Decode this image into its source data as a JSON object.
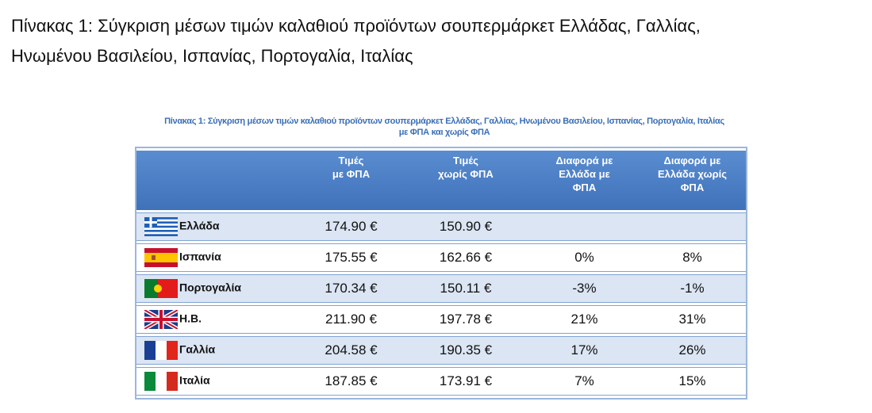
{
  "header": {
    "title_lines": [
      "Πίνακας 1: Σύγκριση μέσων τιμών καλαθιού προϊόντων σουπερμάρκετ Ελλάδας, Γαλλίας,",
      "Ηνωμένου Βασιλείου, Ισπανίας, Πορτογαλία, Ιταλίας"
    ]
  },
  "table": {
    "caption_lines": [
      "Πίνακας 1: Σύγκριση μέσων τιμών καλαθιού προϊόντων σουπερμάρκετ Ελλάδας, Γαλλίας, Ηνωμένου Βασιλείου, Ισπανίας, Πορτογαλία, Ιταλίας",
      "με ΦΠΑ και χωρίς ΦΠΑ"
    ],
    "columns": [
      [
        "Τιμές",
        "με ΦΠΑ"
      ],
      [
        "Τιμές",
        "χωρίς ΦΠΑ"
      ],
      [
        "Διαφορά με",
        "Ελλάδα με",
        "ΦΠΑ"
      ],
      [
        "Διαφορά με",
        "Ελλάδα χωρίς",
        "ΦΠΑ"
      ]
    ],
    "rows": [
      [
        "Ελλάδα",
        "174.90 €",
        "150.90 €"
      ],
      [
        "Ισπανία",
        "175.55 €",
        "162.66 €",
        "0%",
        "8%"
      ],
      [
        "Πορτογαλία",
        "170.34 €",
        "150.11 €",
        "-3%",
        "-1%"
      ],
      [
        "Η.Β.",
        "211.90 €",
        "197.78 €",
        "21%",
        "31%"
      ],
      [
        "Γαλλία",
        "204.58 €",
        "190.35 €",
        "17%",
        "26%"
      ],
      [
        "Ιταλία",
        "187.85 €",
        "173.91 €",
        "7%",
        "15%"
      ]
    ]
  }
}
